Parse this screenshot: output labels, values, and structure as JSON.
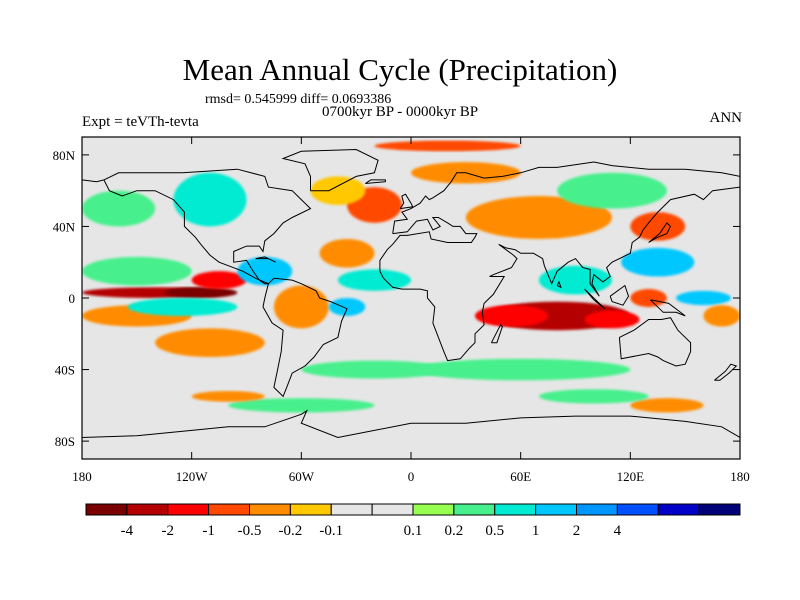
{
  "title": "Mean Annual Cycle (Precipitation)",
  "stats": "rmsd= 0.545999 diff= 0.0693386",
  "period": "0700kyr BP - 0000kyr BP",
  "experiment": "Expt = teVTh-tevta",
  "season": "ANN",
  "map": {
    "lon_range": [
      -180,
      180
    ],
    "lat_range": [
      -90,
      90
    ],
    "lon_ticks": [
      {
        "value": -180,
        "label": "180"
      },
      {
        "value": -120,
        "label": "120W"
      },
      {
        "value": -60,
        "label": "60W"
      },
      {
        "value": 0,
        "label": "0"
      },
      {
        "value": 60,
        "label": "60E"
      },
      {
        "value": 120,
        "label": "120E"
      },
      {
        "value": 180,
        "label": "180"
      }
    ],
    "lat_ticks": [
      {
        "value": 80,
        "label": "80N"
      },
      {
        "value": 40,
        "label": "40N"
      },
      {
        "value": 0,
        "label": "0"
      },
      {
        "value": -40,
        "label": "40S"
      },
      {
        "value": -80,
        "label": "80S"
      }
    ],
    "background_color": "#e6e6e6",
    "anomaly_regions": [
      {
        "lon": -140,
        "lat": 3,
        "rlon": 40,
        "rlat": 3,
        "bin": 1
      },
      {
        "lon": -115,
        "lat": 3,
        "rlon": 20,
        "rlat": 3,
        "bin": 0
      },
      {
        "lon": -105,
        "lat": 10,
        "rlon": 15,
        "rlat": 5,
        "bin": 2
      },
      {
        "lon": -150,
        "lat": -10,
        "rlon": 30,
        "rlat": 6,
        "bin": 4
      },
      {
        "lon": -110,
        "lat": -25,
        "rlon": 30,
        "rlat": 8,
        "bin": 4
      },
      {
        "lon": -150,
        "lat": 15,
        "rlon": 30,
        "rlat": 8,
        "bin": 9
      },
      {
        "lon": -125,
        "lat": -5,
        "rlon": 30,
        "rlat": 5,
        "bin": 10
      },
      {
        "lon": -160,
        "lat": 50,
        "rlon": 20,
        "rlat": 10,
        "bin": 9
      },
      {
        "lon": -110,
        "lat": 55,
        "rlon": 20,
        "rlat": 15,
        "bin": 10
      },
      {
        "lon": -80,
        "lat": 15,
        "rlon": 15,
        "rlat": 8,
        "bin": 11
      },
      {
        "lon": -60,
        "lat": -5,
        "rlon": 15,
        "rlat": 12,
        "bin": 4
      },
      {
        "lon": -35,
        "lat": 25,
        "rlon": 15,
        "rlat": 8,
        "bin": 4
      },
      {
        "lon": -20,
        "lat": 52,
        "rlon": 15,
        "rlat": 10,
        "bin": 3
      },
      {
        "lon": -40,
        "lat": 60,
        "rlon": 15,
        "rlat": 8,
        "bin": 5
      },
      {
        "lon": -20,
        "lat": 10,
        "rlon": 20,
        "rlat": 6,
        "bin": 10
      },
      {
        "lon": -35,
        "lat": -5,
        "rlon": 10,
        "rlat": 5,
        "bin": 11
      },
      {
        "lon": 80,
        "lat": -10,
        "rlon": 40,
        "rlat": 8,
        "bin": 1
      },
      {
        "lon": 55,
        "lat": -10,
        "rlon": 20,
        "rlat": 6,
        "bin": 2
      },
      {
        "lon": 110,
        "lat": -12,
        "rlon": 15,
        "rlat": 5,
        "bin": 2
      },
      {
        "lon": 90,
        "lat": 10,
        "rlon": 20,
        "rlat": 8,
        "bin": 10
      },
      {
        "lon": 135,
        "lat": 20,
        "rlon": 20,
        "rlat": 8,
        "bin": 11
      },
      {
        "lon": 135,
        "lat": 40,
        "rlon": 15,
        "rlat": 8,
        "bin": 3
      },
      {
        "lon": 70,
        "lat": 45,
        "rlon": 40,
        "rlat": 12,
        "bin": 4
      },
      {
        "lon": 110,
        "lat": 60,
        "rlon": 30,
        "rlat": 10,
        "bin": 9
      },
      {
        "lon": 60,
        "lat": -40,
        "rlon": 60,
        "rlat": 6,
        "bin": 9
      },
      {
        "lon": -20,
        "lat": -40,
        "rlon": 40,
        "rlat": 5,
        "bin": 9
      },
      {
        "lon": 140,
        "lat": -60,
        "rlon": 20,
        "rlat": 4,
        "bin": 4
      },
      {
        "lon": 30,
        "lat": 70,
        "rlon": 30,
        "rlat": 6,
        "bin": 4
      },
      {
        "lon": 20,
        "lat": 85,
        "rlon": 40,
        "rlat": 3,
        "bin": 3
      },
      {
        "lon": -60,
        "lat": -60,
        "rlon": 40,
        "rlat": 4,
        "bin": 9
      },
      {
        "lon": 100,
        "lat": -55,
        "rlon": 30,
        "rlat": 4,
        "bin": 9
      },
      {
        "lon": -100,
        "lat": -55,
        "rlon": 20,
        "rlat": 3,
        "bin": 4
      },
      {
        "lon": 160,
        "lat": 0,
        "rlon": 15,
        "rlat": 4,
        "bin": 11
      },
      {
        "lon": 170,
        "lat": -10,
        "rlon": 10,
        "rlat": 6,
        "bin": 4
      },
      {
        "lon": 130,
        "lat": 0,
        "rlon": 10,
        "rlat": 5,
        "bin": 3
      }
    ]
  },
  "colorbar": {
    "colors": [
      "#7a0000",
      "#b40000",
      "#ff0000",
      "#ff4800",
      "#ff8c00",
      "#ffc800",
      "#e6e6e6",
      "#e6e6e6",
      "#96ff50",
      "#46f08c",
      "#00ebd2",
      "#00c8ff",
      "#0096ff",
      "#0050ff",
      "#0000c8",
      "#000078"
    ],
    "labels": [
      "-4",
      "-2",
      "-1",
      "-0.5",
      "-0.2",
      "-0.1",
      "0.1",
      "0.2",
      "0.5",
      "1",
      "2",
      "4"
    ]
  }
}
